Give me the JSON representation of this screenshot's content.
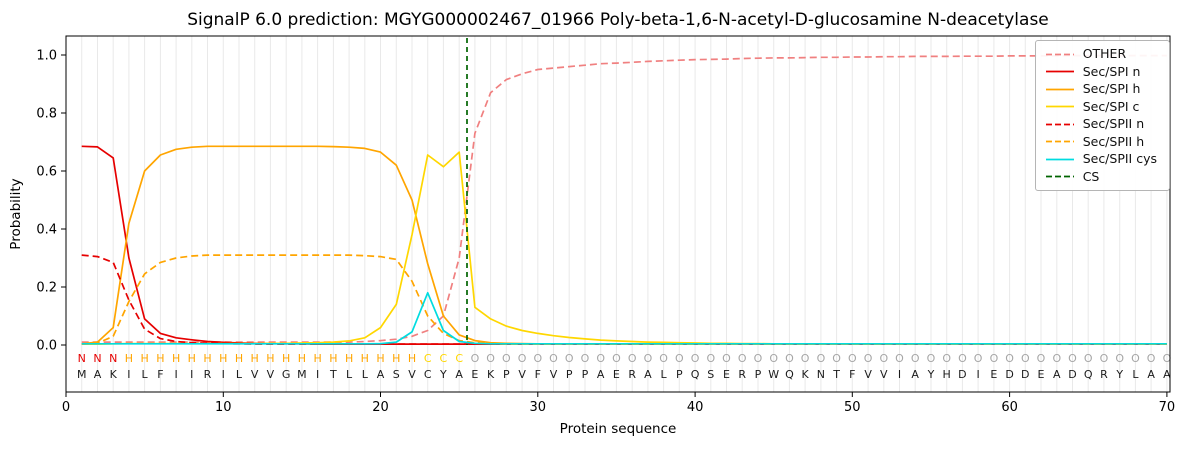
{
  "chart_data": {
    "type": "line",
    "title": "SignalP 6.0 prediction: MGYG000002467_01966 Poly-beta-1,6-N-acetyl-D-glucosamine N-deacetylase",
    "xlabel": "Protein sequence",
    "ylabel": "Probability",
    "x_axis": {
      "label": "Protein sequence",
      "ticks": [
        0,
        10,
        20,
        30,
        40,
        50,
        60,
        70
      ],
      "range": [
        0,
        70.2
      ]
    },
    "y_axis": {
      "label": "Probability",
      "ticks": [
        0.0,
        0.2,
        0.4,
        0.6,
        0.8,
        1.0
      ],
      "range": [
        0.0,
        1.0
      ]
    },
    "grid": "vertical-per-residue",
    "legend_position": "upper right",
    "cs": {
      "name": "CS",
      "position": 25.5,
      "color": "#006400",
      "dash": true
    },
    "region_colors": {
      "N": "#e60000",
      "H": "#ffa500",
      "C": "#ffd700",
      "O": "#a6a6a6"
    },
    "region_labels": [
      "N",
      "N",
      "N",
      "H",
      "H",
      "H",
      "H",
      "H",
      "H",
      "H",
      "H",
      "H",
      "H",
      "H",
      "H",
      "H",
      "H",
      "H",
      "H",
      "H",
      "H",
      "H",
      "C",
      "C",
      "C",
      "O",
      "O",
      "O",
      "O",
      "O",
      "O",
      "O",
      "O",
      "O",
      "O",
      "O",
      "O",
      "O",
      "O",
      "O",
      "O",
      "O",
      "O",
      "O",
      "O",
      "O",
      "O",
      "O",
      "O",
      "O",
      "O",
      "O",
      "O",
      "O",
      "O",
      "O",
      "O",
      "O",
      "O",
      "O",
      "O",
      "O",
      "O",
      "O",
      "O",
      "O",
      "O",
      "O",
      "O",
      "O"
    ],
    "sequence": [
      "M",
      "A",
      "K",
      "I",
      "L",
      "F",
      "I",
      "I",
      "R",
      "I",
      "L",
      "V",
      "V",
      "G",
      "M",
      "I",
      "T",
      "L",
      "L",
      "A",
      "S",
      "V",
      "C",
      "Y",
      "A",
      "E",
      "K",
      "P",
      "V",
      "F",
      "V",
      "P",
      "P",
      "A",
      "E",
      "R",
      "A",
      "L",
      "P",
      "Q",
      "S",
      "E",
      "R",
      "P",
      "W",
      "Q",
      "K",
      "N",
      "T",
      "F",
      "V",
      "V",
      "I",
      "A",
      "Y",
      "H",
      "D",
      "I",
      "E",
      "D",
      "D",
      "E",
      "A",
      "D",
      "Q",
      "R",
      "Y",
      "L",
      "A",
      "A"
    ],
    "series": [
      {
        "name": "OTHER",
        "color": "#f08080",
        "dash": true,
        "values": [
          0.01,
          0.01,
          0.01,
          0.01,
          0.01,
          0.01,
          0.01,
          0.01,
          0.01,
          0.01,
          0.01,
          0.01,
          0.01,
          0.01,
          0.01,
          0.01,
          0.01,
          0.01,
          0.012,
          0.015,
          0.02,
          0.03,
          0.05,
          0.1,
          0.3,
          0.73,
          0.87,
          0.915,
          0.935,
          0.95,
          0.955,
          0.96,
          0.965,
          0.97,
          0.972,
          0.975,
          0.978,
          0.98,
          0.982,
          0.984,
          0.985,
          0.986,
          0.988,
          0.989,
          0.99,
          0.99,
          0.991,
          0.992,
          0.992,
          0.993,
          0.993,
          0.994,
          0.994,
          0.995,
          0.995,
          0.995,
          0.996,
          0.996,
          0.996,
          0.997,
          0.997,
          0.997,
          0.997,
          0.998,
          0.998,
          0.998,
          0.998,
          0.998,
          0.998,
          0.998
        ]
      },
      {
        "name": "Sec/SPI n",
        "color": "#e60000",
        "dash": false,
        "values": [
          0.685,
          0.683,
          0.645,
          0.3,
          0.09,
          0.04,
          0.025,
          0.018,
          0.012,
          0.009,
          0.007,
          0.006,
          0.005,
          0.004,
          0.004,
          0.003,
          0.003,
          0.003,
          0.003,
          0.003,
          0.003,
          0.003,
          0.003,
          0.003,
          0.003,
          0.003,
          0.003,
          0.003,
          0.003,
          0.003,
          0.003,
          0.003,
          0.003,
          0.003,
          0.003,
          0.003,
          0.003,
          0.003,
          0.003,
          0.003,
          0.003,
          0.003,
          0.003,
          0.003,
          0.003,
          0.003,
          0.003,
          0.003,
          0.003,
          0.003,
          0.003,
          0.003,
          0.003,
          0.003,
          0.003,
          0.003,
          0.003,
          0.003,
          0.003,
          0.003,
          0.003,
          0.003,
          0.003,
          0.003,
          0.003,
          0.003,
          0.003,
          0.003,
          0.003,
          0.003
        ]
      },
      {
        "name": "Sec/SPI h",
        "color": "#ffa500",
        "dash": false,
        "values": [
          0.004,
          0.01,
          0.06,
          0.42,
          0.6,
          0.655,
          0.675,
          0.682,
          0.685,
          0.685,
          0.685,
          0.685,
          0.685,
          0.685,
          0.685,
          0.685,
          0.684,
          0.682,
          0.678,
          0.665,
          0.62,
          0.5,
          0.28,
          0.1,
          0.035,
          0.015,
          0.008,
          0.006,
          0.005,
          0.004,
          0.004,
          0.004,
          0.004,
          0.004,
          0.004,
          0.004,
          0.004,
          0.004,
          0.004,
          0.004,
          0.004,
          0.004,
          0.004,
          0.004,
          0.004,
          0.004,
          0.004,
          0.004,
          0.004,
          0.004,
          0.004,
          0.004,
          0.004,
          0.004,
          0.004,
          0.004,
          0.004,
          0.004,
          0.004,
          0.004,
          0.004,
          0.004,
          0.004,
          0.004,
          0.004,
          0.004,
          0.004,
          0.004,
          0.004,
          0.004
        ]
      },
      {
        "name": "Sec/SPI c",
        "color": "#ffd700",
        "dash": false,
        "values": [
          0.003,
          0.003,
          0.004,
          0.005,
          0.005,
          0.005,
          0.005,
          0.005,
          0.005,
          0.005,
          0.005,
          0.005,
          0.006,
          0.006,
          0.007,
          0.008,
          0.01,
          0.014,
          0.025,
          0.06,
          0.14,
          0.38,
          0.655,
          0.615,
          0.665,
          0.13,
          0.09,
          0.065,
          0.05,
          0.04,
          0.032,
          0.026,
          0.021,
          0.017,
          0.014,
          0.012,
          0.01,
          0.009,
          0.008,
          0.007,
          0.006,
          0.006,
          0.005,
          0.005,
          0.004,
          0.004,
          0.004,
          0.004,
          0.004,
          0.004,
          0.004,
          0.004,
          0.004,
          0.004,
          0.004,
          0.004,
          0.004,
          0.004,
          0.004,
          0.004,
          0.004,
          0.004,
          0.004,
          0.004,
          0.004,
          0.004,
          0.004,
          0.004,
          0.004,
          0.004
        ]
      },
      {
        "name": "Sec/SPII n",
        "color": "#e60000",
        "dash": true,
        "values": [
          0.31,
          0.305,
          0.285,
          0.155,
          0.055,
          0.022,
          0.012,
          0.008,
          0.006,
          0.005,
          0.004,
          0.003,
          0.003,
          0.003,
          0.003,
          0.003,
          0.003,
          0.003,
          0.003,
          0.003,
          0.003,
          0.003,
          0.003,
          0.003,
          0.003,
          0.003,
          0.003,
          0.003,
          0.003,
          0.003,
          0.003,
          0.003,
          0.003,
          0.003,
          0.003,
          0.003,
          0.003,
          0.003,
          0.003,
          0.003,
          0.003,
          0.003,
          0.003,
          0.003,
          0.003,
          0.003,
          0.003,
          0.003,
          0.003,
          0.003,
          0.003,
          0.003,
          0.003,
          0.003,
          0.003,
          0.003,
          0.003,
          0.003,
          0.003,
          0.003,
          0.003,
          0.003,
          0.003,
          0.003,
          0.003,
          0.003,
          0.003,
          0.003,
          0.003,
          0.003
        ]
      },
      {
        "name": "Sec/SPII h",
        "color": "#ffa500",
        "dash": true,
        "values": [
          0.003,
          0.006,
          0.03,
          0.15,
          0.245,
          0.285,
          0.3,
          0.307,
          0.31,
          0.31,
          0.31,
          0.31,
          0.31,
          0.31,
          0.31,
          0.31,
          0.31,
          0.31,
          0.308,
          0.305,
          0.295,
          0.22,
          0.1,
          0.04,
          0.015,
          0.008,
          0.005,
          0.003,
          0.003,
          0.003,
          0.003,
          0.003,
          0.003,
          0.003,
          0.003,
          0.003,
          0.003,
          0.003,
          0.003,
          0.003,
          0.003,
          0.003,
          0.003,
          0.003,
          0.003,
          0.003,
          0.003,
          0.003,
          0.003,
          0.003,
          0.003,
          0.003,
          0.003,
          0.003,
          0.003,
          0.003,
          0.003,
          0.003,
          0.003,
          0.003,
          0.003,
          0.003,
          0.003,
          0.003,
          0.003,
          0.003,
          0.003,
          0.003,
          0.003,
          0.003
        ]
      },
      {
        "name": "Sec/SPII cys",
        "color": "#00dce0",
        "dash": false,
        "values": [
          0.004,
          0.004,
          0.004,
          0.004,
          0.004,
          0.004,
          0.004,
          0.004,
          0.004,
          0.004,
          0.004,
          0.004,
          0.004,
          0.004,
          0.004,
          0.004,
          0.004,
          0.004,
          0.004,
          0.005,
          0.01,
          0.045,
          0.18,
          0.05,
          0.012,
          0.006,
          0.004,
          0.004,
          0.004,
          0.004,
          0.004,
          0.004,
          0.004,
          0.004,
          0.004,
          0.004,
          0.004,
          0.004,
          0.004,
          0.004,
          0.004,
          0.004,
          0.004,
          0.004,
          0.004,
          0.004,
          0.004,
          0.004,
          0.004,
          0.004,
          0.004,
          0.004,
          0.004,
          0.004,
          0.004,
          0.004,
          0.004,
          0.004,
          0.004,
          0.004,
          0.004,
          0.004,
          0.004,
          0.004,
          0.004,
          0.004,
          0.004,
          0.004,
          0.004,
          0.004
        ]
      }
    ],
    "legend": {
      "entries": [
        {
          "label": "OTHER",
          "color": "#f08080",
          "dash": true
        },
        {
          "label": "Sec/SPI n",
          "color": "#e60000",
          "dash": false
        },
        {
          "label": "Sec/SPI h",
          "color": "#ffa500",
          "dash": false
        },
        {
          "label": "Sec/SPI c",
          "color": "#ffd700",
          "dash": false
        },
        {
          "label": "Sec/SPII n",
          "color": "#e60000",
          "dash": true
        },
        {
          "label": "Sec/SPII h",
          "color": "#ffa500",
          "dash": true
        },
        {
          "label": "Sec/SPII cys",
          "color": "#00dce0",
          "dash": false
        },
        {
          "label": "CS",
          "color": "#006400",
          "dash": true
        }
      ]
    }
  }
}
